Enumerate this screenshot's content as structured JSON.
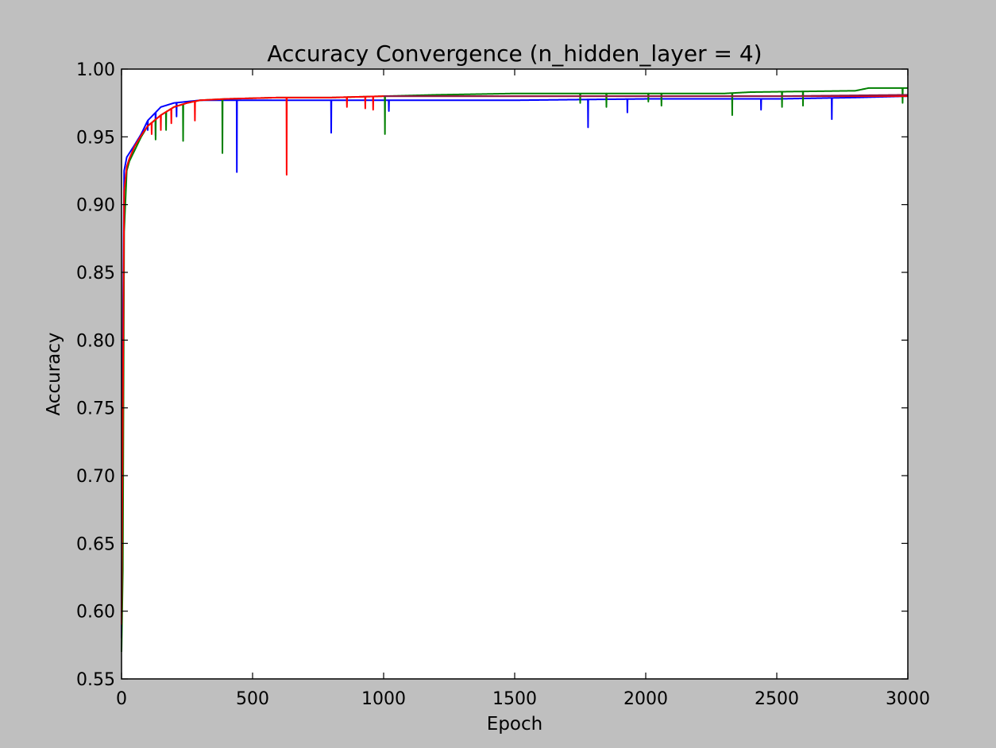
{
  "window": {
    "background_color": "#bfbfbf"
  },
  "chart_data": {
    "type": "line",
    "title": "Accuracy Convergence (n_hidden_layer = 4)",
    "xlabel": "Epoch",
    "ylabel": "Accuracy",
    "xlim": [
      0,
      3000
    ],
    "ylim": [
      0.55,
      1.0
    ],
    "xticks": [
      "0",
      "500",
      "1000",
      "1500",
      "2000",
      "2500",
      "3000"
    ],
    "xtick_values": [
      0,
      500,
      1000,
      1500,
      2000,
      2500,
      3000
    ],
    "yticks": [
      "0.55",
      "0.60",
      "0.65",
      "0.70",
      "0.75",
      "0.80",
      "0.85",
      "0.90",
      "0.95",
      "1.00"
    ],
    "ytick_values": [
      0.55,
      0.6,
      0.65,
      0.7,
      0.75,
      0.8,
      0.85,
      0.9,
      0.95,
      1.0
    ],
    "grid": false,
    "legend": "none",
    "series": [
      {
        "color": "#0000ff",
        "x": [
          0,
          5,
          10,
          20,
          30,
          50,
          75,
          100,
          150,
          200,
          250,
          300,
          400,
          500,
          700,
          1000,
          1500,
          2000,
          2500,
          2800,
          3000
        ],
        "values": [
          0.58,
          0.8,
          0.925,
          0.935,
          0.938,
          0.944,
          0.952,
          0.962,
          0.972,
          0.975,
          0.976,
          0.977,
          0.977,
          0.977,
          0.977,
          0.977,
          0.977,
          0.978,
          0.978,
          0.979,
          0.98
        ],
        "dips": [
          [
            100,
            0.955
          ],
          [
            130,
            0.951
          ],
          [
            210,
            0.965
          ],
          [
            440,
            0.924
          ],
          [
            800,
            0.953
          ],
          [
            1020,
            0.969
          ],
          [
            1780,
            0.957
          ],
          [
            1930,
            0.968
          ],
          [
            2440,
            0.97
          ],
          [
            2710,
            0.963
          ]
        ]
      },
      {
        "color": "#008000",
        "x": [
          0,
          5,
          10,
          20,
          30,
          50,
          75,
          100,
          150,
          200,
          250,
          300,
          400,
          600,
          800,
          1000,
          1200,
          1500,
          2000,
          2300,
          2400,
          2800,
          2850,
          3000
        ],
        "values": [
          0.57,
          0.63,
          0.88,
          0.925,
          0.932,
          0.94,
          0.95,
          0.958,
          0.966,
          0.972,
          0.975,
          0.977,
          0.978,
          0.979,
          0.979,
          0.98,
          0.981,
          0.982,
          0.982,
          0.982,
          0.983,
          0.984,
          0.986,
          0.986
        ],
        "dips": [
          [
            130,
            0.948
          ],
          [
            170,
            0.955
          ],
          [
            235,
            0.947
          ],
          [
            385,
            0.938
          ],
          [
            1005,
            0.952
          ],
          [
            1750,
            0.975
          ],
          [
            1850,
            0.972
          ],
          [
            2010,
            0.976
          ],
          [
            2060,
            0.973
          ],
          [
            2330,
            0.966
          ],
          [
            2520,
            0.972
          ],
          [
            2600,
            0.973
          ],
          [
            2980,
            0.975
          ]
        ]
      },
      {
        "color": "#ff0000",
        "x": [
          0,
          5,
          10,
          20,
          30,
          50,
          75,
          100,
          150,
          200,
          250,
          300,
          400,
          600,
          800,
          1000,
          1500,
          2000,
          2500,
          3000
        ],
        "values": [
          0.59,
          0.75,
          0.91,
          0.928,
          0.934,
          0.943,
          0.951,
          0.958,
          0.966,
          0.972,
          0.975,
          0.977,
          0.978,
          0.979,
          0.979,
          0.98,
          0.98,
          0.98,
          0.98,
          0.98
        ],
        "dips": [
          [
            115,
            0.952
          ],
          [
            150,
            0.955
          ],
          [
            190,
            0.96
          ],
          [
            280,
            0.962
          ],
          [
            630,
            0.922
          ],
          [
            860,
            0.972
          ],
          [
            930,
            0.971
          ],
          [
            960,
            0.97
          ]
        ]
      },
      {
        "color": "#8b1a4a",
        "x": [
          1000,
          1500,
          2000,
          2500,
          3000
        ],
        "values": [
          0.98,
          0.98,
          0.98,
          0.98,
          0.981
        ],
        "dips": []
      }
    ]
  }
}
